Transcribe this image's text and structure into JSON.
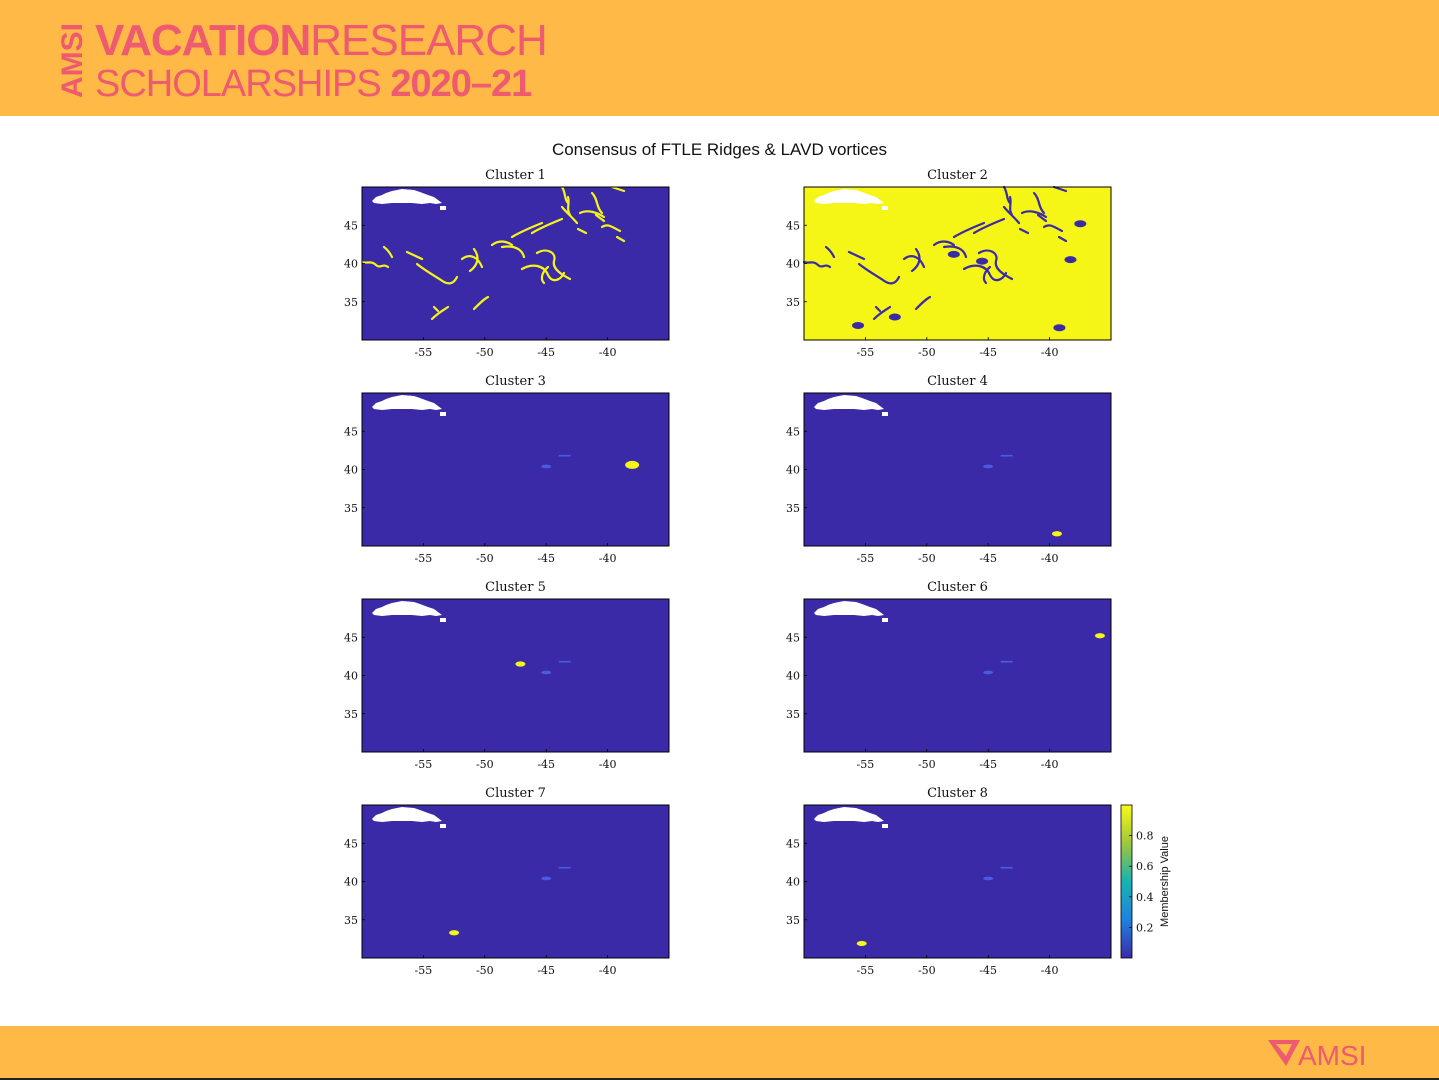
{
  "header": {
    "logo_vertical": "AMSI",
    "logo_line1_bold": "VACATION",
    "logo_line1_light": "RESEARCH",
    "logo_line2_light": "SCHOLARSHIPS ",
    "logo_line2_bold": "2020–21"
  },
  "footer": {
    "logo": "AMSI"
  },
  "colors": {
    "banner": "#FFB946",
    "brand": "#EE5A6F",
    "background_field": "#3B2AA8",
    "highlight": "#F5F516"
  },
  "chart_data": {
    "type": "heatmap",
    "title": "Consensus of FTLE Ridges & LAVD vortices",
    "xlim": [
      -60,
      -35
    ],
    "ylim": [
      30,
      50
    ],
    "xticks": [
      -55,
      -50,
      -45,
      -40
    ],
    "yticks": [
      35,
      40,
      45
    ],
    "panels": [
      {
        "title": "Cluster 1",
        "background": 0,
        "feature": "ridges",
        "vortex_lon": null,
        "vortex_lat": null
      },
      {
        "title": "Cluster 2",
        "background": 1,
        "feature": "ridges_and_vortices",
        "vortex_lon": null,
        "vortex_lat": null
      },
      {
        "title": "Cluster 3",
        "background": 0,
        "feature": "vortex",
        "vortex_lon": -38,
        "vortex_lat": 40.6
      },
      {
        "title": "Cluster 4",
        "background": 0,
        "feature": "vortex",
        "vortex_lon": -39.4,
        "vortex_lat": 31.6
      },
      {
        "title": "Cluster 5",
        "background": 0,
        "feature": "vortex",
        "vortex_lon": -47.1,
        "vortex_lat": 41.5
      },
      {
        "title": "Cluster 6",
        "background": 0,
        "feature": "vortex",
        "vortex_lon": -35.9,
        "vortex_lat": 45.2
      },
      {
        "title": "Cluster 7",
        "background": 0,
        "feature": "vortex",
        "vortex_lon": -52.5,
        "vortex_lat": 33.3
      },
      {
        "title": "Cluster 8",
        "background": 0,
        "feature": "vortex",
        "vortex_lon": -55.3,
        "vortex_lat": 31.9
      }
    ],
    "colorbar": {
      "label": "Membership Value",
      "ticks": [
        0.2,
        0.4,
        0.6,
        0.8
      ],
      "range": [
        0,
        1
      ],
      "colormap": "parula"
    }
  }
}
